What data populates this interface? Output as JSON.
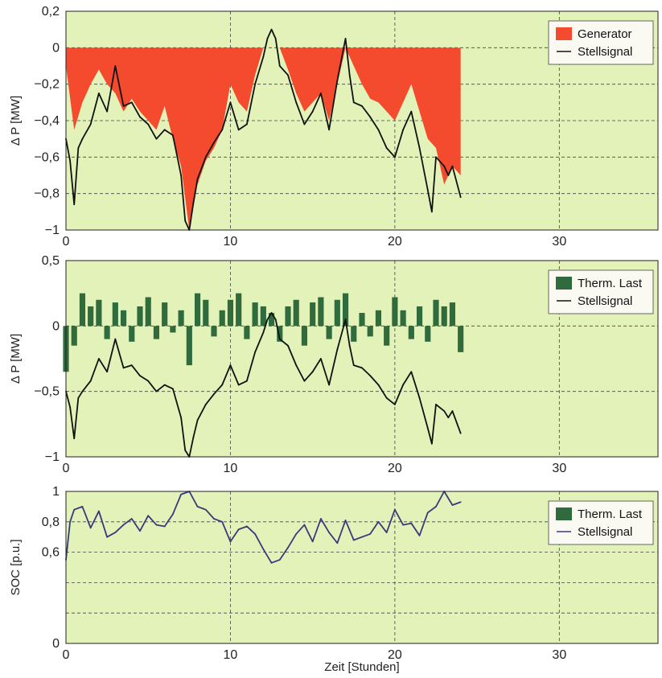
{
  "chart_data": [
    {
      "type": "area",
      "xlim": [
        0,
        36
      ],
      "ylim": [
        -1,
        0.2
      ],
      "xticks": [
        0,
        10,
        20,
        30
      ],
      "yticks": [
        -1,
        -0.8,
        -0.6,
        -0.4,
        -0.2,
        0,
        0.2
      ],
      "xtick_labels": [
        "0",
        "10",
        "20",
        "30"
      ],
      "ytick_labels": [
        "−1",
        "−0,8",
        "−0,6",
        "−0,4",
        "−0,2",
        "0",
        "0,2"
      ],
      "xlabel": "",
      "ylabel": "Δ P [MW]",
      "grid": true,
      "legend_position": "top-right",
      "background_color": "#e2f2b8",
      "series": [
        {
          "name": "Generator",
          "kind": "fill",
          "color": "#f44a2e",
          "x": [
            0,
            0.5,
            1,
            1.5,
            2,
            2.5,
            3,
            3.5,
            4,
            4.5,
            5,
            5.5,
            6,
            6.5,
            7,
            7.5,
            8,
            8.5,
            9,
            9.5,
            10,
            10.5,
            11,
            11.5,
            12,
            12.5,
            13,
            13.5,
            14,
            14.5,
            15,
            15.5,
            16,
            16.5,
            17,
            17.5,
            18,
            18.5,
            19,
            19.5,
            20,
            20.5,
            21,
            21.5,
            22,
            22.5,
            23,
            23.5,
            24
          ],
          "values": [
            -0.1,
            -0.45,
            -0.3,
            -0.2,
            -0.12,
            -0.2,
            -0.25,
            -0.35,
            -0.28,
            -0.35,
            -0.4,
            -0.45,
            -0.32,
            -0.5,
            -0.65,
            -1.0,
            -0.75,
            -0.62,
            -0.55,
            -0.45,
            -0.2,
            -0.3,
            -0.35,
            -0.15,
            0,
            0,
            0,
            -0.12,
            -0.25,
            -0.35,
            -0.3,
            -0.25,
            -0.4,
            -0.2,
            0,
            -0.1,
            -0.2,
            -0.28,
            -0.3,
            -0.35,
            -0.4,
            -0.3,
            -0.2,
            -0.35,
            -0.5,
            -0.55,
            -0.75,
            -0.65,
            -0.7
          ]
        },
        {
          "name": "Stellsignal",
          "kind": "line",
          "color": "#111111",
          "x": [
            0,
            0.25,
            0.5,
            0.75,
            1,
            1.5,
            2,
            2.5,
            3,
            3.5,
            4,
            4.5,
            5,
            5.5,
            6,
            6.5,
            7,
            7.25,
            7.5,
            7.75,
            8,
            8.5,
            9,
            9.5,
            10,
            10.5,
            11,
            11.5,
            12,
            12.25,
            12.5,
            12.75,
            13,
            13.5,
            14,
            14.5,
            15,
            15.5,
            16,
            16.5,
            17,
            17.25,
            17.5,
            18,
            18.5,
            19,
            19.5,
            20,
            20.5,
            21,
            21.5,
            22,
            22.25,
            22.5,
            23,
            23.25,
            23.5,
            24
          ],
          "values": [
            -0.5,
            -0.62,
            -0.86,
            -0.55,
            -0.5,
            -0.42,
            -0.25,
            -0.35,
            -0.1,
            -0.32,
            -0.3,
            -0.38,
            -0.42,
            -0.5,
            -0.45,
            -0.48,
            -0.7,
            -0.95,
            -1.0,
            -0.85,
            -0.72,
            -0.6,
            -0.52,
            -0.45,
            -0.3,
            -0.45,
            -0.42,
            -0.2,
            -0.05,
            0.05,
            0.1,
            0.05,
            -0.1,
            -0.15,
            -0.3,
            -0.42,
            -0.35,
            -0.25,
            -0.45,
            -0.18,
            0.05,
            -0.15,
            -0.3,
            -0.32,
            -0.38,
            -0.45,
            -0.55,
            -0.6,
            -0.45,
            -0.35,
            -0.55,
            -0.78,
            -0.9,
            -0.6,
            -0.65,
            -0.7,
            -0.65,
            -0.82
          ]
        }
      ]
    },
    {
      "type": "bar",
      "xlim": [
        0,
        36
      ],
      "ylim": [
        -1,
        0.5
      ],
      "xticks": [
        0,
        10,
        20,
        30
      ],
      "yticks": [
        -1,
        -0.5,
        0,
        0.5
      ],
      "xtick_labels": [
        "0",
        "10",
        "20",
        "30"
      ],
      "ytick_labels": [
        "−1",
        "−0,5",
        "0",
        "0,5"
      ],
      "xlabel": "",
      "ylabel": "Δ P [MW]",
      "grid": true,
      "legend_position": "top-right",
      "background_color": "#e2f2b8",
      "series": [
        {
          "name": "Therm. Last",
          "kind": "bar",
          "color": "#2f6b3d",
          "x": [
            0,
            0.5,
            1,
            1.5,
            2,
            2.5,
            3,
            3.5,
            4,
            4.5,
            5,
            5.5,
            6,
            6.5,
            7,
            7.5,
            8,
            8.5,
            9,
            9.5,
            10,
            10.5,
            11,
            11.5,
            12,
            12.5,
            13,
            13.5,
            14,
            14.5,
            15,
            15.5,
            16,
            16.5,
            17,
            17.5,
            18,
            18.5,
            19,
            19.5,
            20,
            20.5,
            21,
            21.5,
            22,
            22.5,
            23,
            23.5,
            24
          ],
          "values": [
            -0.35,
            -0.15,
            0.25,
            0.15,
            0.2,
            -0.1,
            0.18,
            0.12,
            -0.12,
            0.15,
            0.22,
            -0.1,
            0.18,
            -0.05,
            0.12,
            -0.3,
            0.25,
            0.2,
            -0.08,
            0.12,
            0.2,
            0.25,
            -0.1,
            0.18,
            0.15,
            0.1,
            -0.12,
            0.15,
            0.2,
            -0.15,
            0.18,
            0.22,
            -0.1,
            0.2,
            0.25,
            -0.12,
            0.1,
            -0.08,
            0.12,
            -0.15,
            0.22,
            0.12,
            -0.1,
            0.15,
            -0.12,
            0.2,
            0.15,
            0.18,
            -0.2
          ]
        },
        {
          "name": "Stellsignal",
          "kind": "line",
          "color": "#111111",
          "x": [
            0,
            0.25,
            0.5,
            0.75,
            1,
            1.5,
            2,
            2.5,
            3,
            3.5,
            4,
            4.5,
            5,
            5.5,
            6,
            6.5,
            7,
            7.25,
            7.5,
            7.75,
            8,
            8.5,
            9,
            9.5,
            10,
            10.5,
            11,
            11.5,
            12,
            12.25,
            12.5,
            12.75,
            13,
            13.5,
            14,
            14.5,
            15,
            15.5,
            16,
            16.5,
            17,
            17.25,
            17.5,
            18,
            18.5,
            19,
            19.5,
            20,
            20.5,
            21,
            21.5,
            22,
            22.25,
            22.5,
            23,
            23.25,
            23.5,
            24
          ],
          "values": [
            -0.5,
            -0.62,
            -0.86,
            -0.55,
            -0.5,
            -0.42,
            -0.25,
            -0.35,
            -0.1,
            -0.32,
            -0.3,
            -0.38,
            -0.42,
            -0.5,
            -0.45,
            -0.48,
            -0.7,
            -0.95,
            -1.0,
            -0.85,
            -0.72,
            -0.6,
            -0.52,
            -0.45,
            -0.3,
            -0.45,
            -0.42,
            -0.2,
            -0.05,
            0.05,
            0.1,
            0.05,
            -0.1,
            -0.15,
            -0.3,
            -0.42,
            -0.35,
            -0.25,
            -0.45,
            -0.18,
            0.05,
            -0.15,
            -0.3,
            -0.32,
            -0.38,
            -0.45,
            -0.55,
            -0.6,
            -0.45,
            -0.35,
            -0.55,
            -0.78,
            -0.9,
            -0.6,
            -0.65,
            -0.7,
            -0.65,
            -0.82
          ]
        }
      ]
    },
    {
      "type": "line",
      "xlim": [
        0,
        36
      ],
      "ylim": [
        0,
        1
      ],
      "xticks": [
        0,
        10,
        20,
        30
      ],
      "yticks": [
        0,
        0.2,
        0.4,
        0.6,
        0.8,
        1
      ],
      "xtick_labels": [
        "0",
        "10",
        "20",
        "30"
      ],
      "ytick_labels": [
        "0",
        "",
        "",
        "0,6",
        "0,8",
        "1"
      ],
      "xlabel": "Zeit [Stunden]",
      "ylabel": "SOC [p.u.]",
      "grid": true,
      "legend_position": "top-right",
      "background_color": "#e2f2b8",
      "series": [
        {
          "name": "Therm. Last",
          "kind": "legend-only",
          "color": "#2f6b3d"
        },
        {
          "name": "Stellsignal",
          "kind": "line",
          "color": "#3a3a7a",
          "x": [
            0,
            0.25,
            0.5,
            1,
            1.5,
            2,
            2.5,
            3,
            3.5,
            4,
            4.5,
            5,
            5.5,
            6,
            6.5,
            7,
            7.5,
            8,
            8.5,
            9,
            9.5,
            10,
            10.5,
            11,
            11.5,
            12,
            12.5,
            13,
            13.5,
            14,
            14.5,
            15,
            15.5,
            16,
            16.5,
            17,
            17.5,
            18,
            18.5,
            19,
            19.5,
            20,
            20.5,
            21,
            21.5,
            22,
            22.5,
            23,
            23.5,
            24
          ],
          "values": [
            0.55,
            0.8,
            0.88,
            0.9,
            0.76,
            0.87,
            0.7,
            0.73,
            0.78,
            0.82,
            0.74,
            0.84,
            0.78,
            0.77,
            0.85,
            0.98,
            1.0,
            0.9,
            0.88,
            0.82,
            0.8,
            0.67,
            0.75,
            0.77,
            0.72,
            0.62,
            0.53,
            0.55,
            0.63,
            0.72,
            0.78,
            0.67,
            0.82,
            0.73,
            0.66,
            0.81,
            0.68,
            0.7,
            0.72,
            0.8,
            0.73,
            0.88,
            0.78,
            0.79,
            0.71,
            0.86,
            0.9,
            1.0,
            0.91,
            0.93
          ]
        }
      ]
    }
  ]
}
